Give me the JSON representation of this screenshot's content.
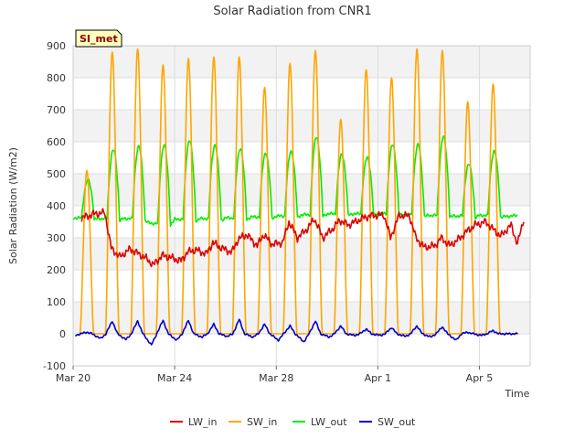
{
  "chart_data": {
    "type": "line",
    "title": "Solar Radiation from CNR1",
    "badge": "SI_met",
    "xlabel": "Time",
    "ylabel": "Solar Radiation (W/m2)",
    "ylim": [
      -100,
      900
    ],
    "yticks": [
      -100,
      0,
      100,
      200,
      300,
      400,
      500,
      600,
      700,
      800,
      900
    ],
    "xlim": [
      "2024-03-20",
      "2024-04-07"
    ],
    "xticks": [
      {
        "date": "2024-03-20",
        "label": "Mar 20"
      },
      {
        "date": "2024-03-24",
        "label": "Mar 24"
      },
      {
        "date": "2024-03-28",
        "label": "Mar 28"
      },
      {
        "date": "2024-04-01",
        "label": "Apr 1"
      },
      {
        "date": "2024-04-05",
        "label": "Apr 5"
      }
    ],
    "grid": true,
    "legend_position": "bottom",
    "series": [
      {
        "name": "LW_in",
        "color": "#dd0000",
        "points": [
          [
            "2024-03-20T08:00",
            362
          ],
          [
            "2024-03-20T20:00",
            375
          ],
          [
            "2024-03-21T06:00",
            378
          ],
          [
            "2024-03-21T12:00",
            268
          ],
          [
            "2024-03-21T20:00",
            240
          ],
          [
            "2024-03-22T06:00",
            265
          ],
          [
            "2024-03-22T14:00",
            250
          ],
          [
            "2024-03-22T20:00",
            238
          ],
          [
            "2024-03-23T04:00",
            215
          ],
          [
            "2024-03-23T12:00",
            245
          ],
          [
            "2024-03-23T20:00",
            238
          ],
          [
            "2024-03-24T06:00",
            228
          ],
          [
            "2024-03-24T12:00",
            255
          ],
          [
            "2024-03-24T20:00",
            262
          ],
          [
            "2024-03-25T06:00",
            250
          ],
          [
            "2024-03-25T12:00",
            285
          ],
          [
            "2024-03-25T20:00",
            268
          ],
          [
            "2024-03-26T06:00",
            255
          ],
          [
            "2024-03-26T12:00",
            295
          ],
          [
            "2024-03-26T20:00",
            310
          ],
          [
            "2024-03-27T06:00",
            275
          ],
          [
            "2024-03-27T12:00",
            310
          ],
          [
            "2024-03-27T20:00",
            280
          ],
          [
            "2024-03-28T06:00",
            285
          ],
          [
            "2024-03-28T12:00",
            350
          ],
          [
            "2024-03-28T20:00",
            300
          ],
          [
            "2024-03-29T06:00",
            330
          ],
          [
            "2024-03-29T12:00",
            360
          ],
          [
            "2024-03-29T20:00",
            300
          ],
          [
            "2024-03-30T06:00",
            330
          ],
          [
            "2024-03-30T12:00",
            355
          ],
          [
            "2024-03-30T20:00",
            340
          ],
          [
            "2024-03-31T06:00",
            355
          ],
          [
            "2024-03-31T12:00",
            365
          ],
          [
            "2024-03-31T20:00",
            370
          ],
          [
            "2024-04-01T06:00",
            370
          ],
          [
            "2024-04-01T12:00",
            300
          ],
          [
            "2024-04-01T20:00",
            370
          ],
          [
            "2024-04-02T06:00",
            368
          ],
          [
            "2024-04-02T12:00",
            300
          ],
          [
            "2024-04-02T20:00",
            270
          ],
          [
            "2024-04-03T06:00",
            275
          ],
          [
            "2024-04-03T12:00",
            300
          ],
          [
            "2024-04-03T20:00",
            275
          ],
          [
            "2024-04-04T06:00",
            300
          ],
          [
            "2024-04-04T12:00",
            320
          ],
          [
            "2024-04-04T20:00",
            340
          ],
          [
            "2024-04-05T06:00",
            350
          ],
          [
            "2024-04-05T12:00",
            330
          ],
          [
            "2024-04-05T20:00",
            305
          ],
          [
            "2024-04-06T06:00",
            340
          ],
          [
            "2024-04-06T12:00",
            280
          ],
          [
            "2024-04-06T18:00",
            360
          ]
        ]
      },
      {
        "name": "SW_in",
        "color": "#ffa500",
        "peak_hour": 13,
        "peaks": [
          [
            "2024-03-20",
            510
          ],
          [
            "2024-03-21",
            880
          ],
          [
            "2024-03-22",
            890
          ],
          [
            "2024-03-23",
            840
          ],
          [
            "2024-03-24",
            860
          ],
          [
            "2024-03-25",
            865
          ],
          [
            "2024-03-26",
            865
          ],
          [
            "2024-03-27",
            770
          ],
          [
            "2024-03-28",
            845
          ],
          [
            "2024-03-29",
            885
          ],
          [
            "2024-03-30",
            670
          ],
          [
            "2024-03-31",
            825
          ],
          [
            "2024-04-01",
            800
          ],
          [
            "2024-04-02",
            890
          ],
          [
            "2024-04-03",
            885
          ],
          [
            "2024-04-04",
            725
          ],
          [
            "2024-04-05",
            780
          ]
        ]
      },
      {
        "name": "LW_out",
        "color": "#00ee00",
        "peak_hour": 14,
        "night_values": [
          [
            "2024-03-20",
            362
          ],
          [
            "2024-03-21",
            360
          ],
          [
            "2024-03-22",
            360
          ],
          [
            "2024-03-23",
            345
          ],
          [
            "2024-03-24",
            358
          ],
          [
            "2024-03-25",
            360
          ],
          [
            "2024-03-26",
            362
          ],
          [
            "2024-03-27",
            365
          ],
          [
            "2024-03-28",
            368
          ],
          [
            "2024-03-29",
            372
          ],
          [
            "2024-03-30",
            375
          ],
          [
            "2024-03-31",
            375
          ],
          [
            "2024-04-01",
            375
          ],
          [
            "2024-04-02",
            372
          ],
          [
            "2024-04-03",
            370
          ],
          [
            "2024-04-04",
            368
          ],
          [
            "2024-04-05",
            370
          ],
          [
            "2024-04-06",
            375
          ]
        ],
        "peaks": [
          [
            "2024-03-20",
            480
          ],
          [
            "2024-03-21",
            575
          ],
          [
            "2024-03-22",
            585
          ],
          [
            "2024-03-23",
            590
          ],
          [
            "2024-03-24",
            605
          ],
          [
            "2024-03-25",
            590
          ],
          [
            "2024-03-26",
            580
          ],
          [
            "2024-03-27",
            565
          ],
          [
            "2024-03-28",
            570
          ],
          [
            "2024-03-29",
            615
          ],
          [
            "2024-03-30",
            560
          ],
          [
            "2024-03-31",
            550
          ],
          [
            "2024-04-01",
            590
          ],
          [
            "2024-04-02",
            590
          ],
          [
            "2024-04-03",
            615
          ],
          [
            "2024-04-04",
            530
          ],
          [
            "2024-04-05",
            570
          ]
        ]
      },
      {
        "name": "SW_out",
        "color": "#0000cc",
        "peak_hour": 13,
        "peaks": [
          [
            "2024-03-20",
            5
          ],
          [
            "2024-03-21",
            40
          ],
          [
            "2024-03-22",
            40
          ],
          [
            "2024-03-23",
            42
          ],
          [
            "2024-03-24",
            42
          ],
          [
            "2024-03-25",
            30
          ],
          [
            "2024-03-26",
            45
          ],
          [
            "2024-03-27",
            30
          ],
          [
            "2024-03-28",
            25
          ],
          [
            "2024-03-29",
            40
          ],
          [
            "2024-03-30",
            25
          ],
          [
            "2024-03-31",
            15
          ],
          [
            "2024-04-01",
            20
          ],
          [
            "2024-04-02",
            25
          ],
          [
            "2024-04-03",
            22
          ],
          [
            "2024-04-04",
            5
          ],
          [
            "2024-04-05",
            10
          ]
        ],
        "night_minima": [
          [
            "2024-03-20",
            -5
          ],
          [
            "2024-03-21",
            -15
          ],
          [
            "2024-03-22",
            -18
          ],
          [
            "2024-03-23",
            -35
          ],
          [
            "2024-03-24",
            -20
          ],
          [
            "2024-03-25",
            -10
          ],
          [
            "2024-03-26",
            -8
          ],
          [
            "2024-03-27",
            -10
          ],
          [
            "2024-03-28",
            -20
          ],
          [
            "2024-03-29",
            -25
          ],
          [
            "2024-03-30",
            -10
          ],
          [
            "2024-03-31",
            -5
          ],
          [
            "2024-04-01",
            -5
          ],
          [
            "2024-04-02",
            -8
          ],
          [
            "2024-04-03",
            -10
          ],
          [
            "2024-04-04",
            -20
          ],
          [
            "2024-04-05",
            -5
          ],
          [
            "2024-04-06",
            -3
          ]
        ]
      }
    ]
  }
}
